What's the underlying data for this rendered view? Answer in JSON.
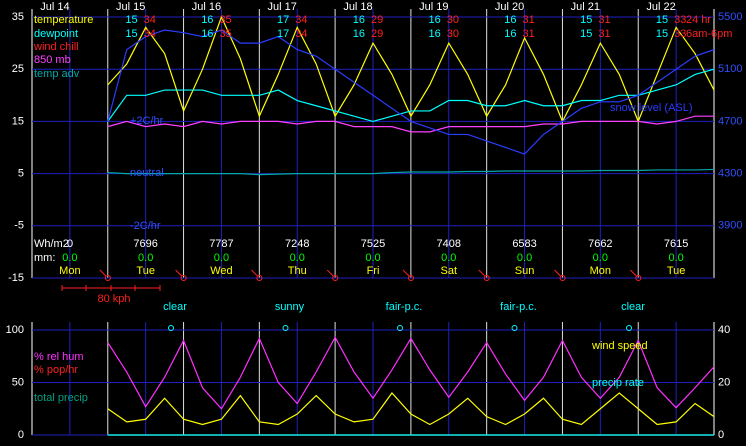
{
  "chart_data": [
    {
      "type": "line",
      "x": [
        0,
        6,
        12,
        18,
        24,
        30,
        36,
        42,
        48,
        54,
        60,
        66,
        72,
        78,
        84,
        90,
        96,
        102,
        108,
        114,
        120,
        126,
        132,
        138,
        144,
        150,
        156,
        162,
        168,
        174,
        180,
        186,
        192,
        198,
        204,
        210,
        216
      ],
      "xlim": [
        0,
        216
      ],
      "xticks": [
        {
          "value": 12,
          "label": "Jul 14"
        },
        {
          "value": 36,
          "label": "Jul 15"
        },
        {
          "value": 60,
          "label": "Jul 16"
        },
        {
          "value": 84,
          "label": "Jul 17"
        },
        {
          "value": 108,
          "label": "Jul 18"
        },
        {
          "value": 132,
          "label": "Jul 19"
        },
        {
          "value": 156,
          "label": "Jul 20"
        },
        {
          "value": 180,
          "label": "Jul 21"
        },
        {
          "value": 204,
          "label": "Jul 22"
        }
      ],
      "ylim": [
        -15,
        35
      ],
      "yticks": [
        -15,
        -5,
        5,
        15,
        25,
        35
      ],
      "y2lim": [
        3500,
        5500
      ],
      "y2ticks": [
        3900,
        4300,
        4700,
        5100,
        5500
      ],
      "grid": true,
      "series": [
        {
          "name": "temperature",
          "color": "#ffff00",
          "values": [
            null,
            null,
            null,
            null,
            22,
            26,
            33,
            28,
            17,
            25,
            35,
            27,
            16,
            24,
            33,
            26,
            16,
            22,
            30,
            24,
            16,
            22,
            30,
            24,
            16,
            22,
            31,
            24,
            15,
            22,
            30,
            24,
            15,
            24,
            33,
            28,
            21
          ]
        },
        {
          "name": "dewpoint",
          "color": "#00ffff",
          "values": [
            null,
            null,
            null,
            null,
            15,
            20,
            20,
            21,
            21,
            21,
            20,
            20,
            20,
            21,
            19,
            18,
            17,
            16,
            15,
            16,
            17,
            17,
            19,
            19,
            18,
            18,
            19,
            18,
            18,
            19,
            19,
            20,
            20,
            21,
            22,
            24,
            25
          ]
        },
        {
          "name": "wind chill",
          "color": "#ff2020",
          "values": [
            null,
            null,
            null,
            null,
            null,
            null,
            null,
            null,
            null,
            null,
            null,
            null,
            null,
            null,
            null,
            null,
            null,
            null,
            null,
            null,
            null,
            null,
            null,
            null,
            null,
            null,
            null,
            null,
            null,
            null,
            null,
            null,
            null,
            null,
            null,
            null,
            null
          ]
        },
        {
          "name": "850 mb",
          "color": "#ff40ff",
          "values": [
            null,
            null,
            null,
            null,
            14,
            15,
            14,
            14.5,
            14,
            15,
            14.5,
            15,
            15,
            15,
            14.5,
            15,
            15,
            14,
            14,
            14,
            13,
            13,
            14,
            14,
            14,
            14,
            14,
            14.5,
            14.5,
            15,
            15,
            15,
            15,
            14.5,
            15,
            16,
            16
          ]
        },
        {
          "name": "temp adv",
          "color": "#00a8a8",
          "values": [
            null,
            null,
            null,
            null,
            5.2,
            5,
            5,
            5,
            5,
            5,
            5,
            5,
            4.8,
            4.9,
            5,
            5,
            5,
            5,
            5,
            5.2,
            5.3,
            5.3,
            5.3,
            5.4,
            5.4,
            5.5,
            5.5,
            5.5,
            5.5,
            5.5,
            5.6,
            5.6,
            5.6,
            5.7,
            5.7,
            5.7,
            5.8
          ]
        },
        {
          "name": "snow level (ASL)",
          "color": "#2a3cff",
          "axis": "y2",
          "values": [
            null,
            null,
            null,
            null,
            4700,
            5250,
            5350,
            5400,
            5380,
            5350,
            5400,
            5300,
            5300,
            5350,
            5250,
            5200,
            5100,
            5000,
            4900,
            4800,
            4700,
            4650,
            4600,
            4600,
            4550,
            4500,
            4450,
            4600,
            4700,
            4800,
            4850,
            4850,
            4900,
            5000,
            5100,
            5200,
            5250
          ]
        }
      ],
      "adv_labels": [
        "+2C/hr",
        "neutral",
        "-2C/hr"
      ],
      "period_labels": [
        "24 hr",
        "6am-6pm"
      ],
      "lows": [
        15,
        16,
        17,
        16,
        16,
        16,
        15,
        15
      ],
      "highs": [
        34,
        35,
        34,
        29,
        30,
        31,
        31,
        33
      ],
      "lows2": [
        15,
        16,
        17,
        16,
        16,
        16,
        15,
        15
      ],
      "highs2": [
        34,
        35,
        34,
        29,
        30,
        31,
        31,
        33
      ],
      "solar_label": "Wh/m2",
      "solar": [
        0,
        7696,
        7787,
        7248,
        7525,
        7408,
        6583,
        7662,
        7615
      ],
      "precip_label": "mm:",
      "precip": [
        "0.0",
        "0.0",
        "0.0",
        "0.0",
        "0.0",
        "0.0",
        "0.0",
        "0.0",
        "0.0"
      ],
      "days": [
        "Mon",
        "Tue",
        "Wed",
        "Thu",
        "Fri",
        "Sat",
        "Sun",
        "Mon",
        "Tue"
      ],
      "wind_scale_label": "80 kph"
    },
    {
      "type": "line",
      "x": [
        0,
        6,
        12,
        18,
        24,
        30,
        36,
        42,
        48,
        54,
        60,
        66,
        72,
        78,
        84,
        90,
        96,
        102,
        108,
        114,
        120,
        126,
        132,
        138,
        144,
        150,
        156,
        162,
        168,
        174,
        180,
        186,
        192,
        198,
        204,
        210,
        216
      ],
      "xlim": [
        0,
        216
      ],
      "ylim": [
        0,
        100
      ],
      "yticks": [
        0,
        50,
        100
      ],
      "y2lim": [
        0,
        40
      ],
      "y2ticks": [
        0,
        20,
        40
      ],
      "grid": true,
      "sky": [
        "clear",
        "sunny",
        "fair-p.c.",
        "fair-p.c.",
        "clear"
      ],
      "series": [
        {
          "name": "% rel hum",
          "color": "#ff30ff",
          "values": [
            null,
            null,
            null,
            null,
            88,
            60,
            27,
            55,
            90,
            45,
            25,
            55,
            92,
            50,
            30,
            60,
            93,
            60,
            35,
            62,
            92,
            62,
            36,
            60,
            88,
            58,
            33,
            55,
            90,
            55,
            35,
            55,
            90,
            45,
            26,
            45,
            65
          ]
        },
        {
          "name": "% pop/hr",
          "color": "#ff2020",
          "values": [
            null,
            null,
            null,
            null,
            0,
            0,
            0,
            0,
            0,
            0,
            0,
            0,
            0,
            0,
            0,
            0,
            0,
            0,
            0,
            0,
            0,
            0,
            0,
            0,
            0,
            0,
            0,
            0,
            0,
            0,
            0,
            0,
            0,
            0,
            0,
            0,
            0
          ]
        },
        {
          "name": "total precip",
          "color": "#00a080",
          "values": [
            null,
            null,
            null,
            null,
            0,
            0,
            0,
            0,
            0,
            0,
            0,
            0,
            0,
            0,
            0,
            0,
            0,
            0,
            0,
            0,
            0,
            0,
            0,
            0,
            0,
            0,
            0,
            0,
            0,
            0,
            0,
            0,
            0,
            0,
            0,
            0,
            0
          ]
        },
        {
          "name": "wind speed",
          "color": "#ffff00",
          "axis": "y2",
          "values": [
            null,
            null,
            null,
            null,
            10,
            5,
            6,
            14,
            6,
            4,
            6,
            15,
            5,
            4,
            8,
            15,
            8,
            5,
            6,
            16,
            8,
            4,
            8,
            14,
            7,
            4,
            8,
            14,
            6,
            4,
            10,
            16,
            10,
            4,
            5,
            12,
            7
          ]
        },
        {
          "name": "precip rate",
          "color": "#00ffff",
          "axis": "y2",
          "values": [
            null,
            null,
            null,
            null,
            0,
            0,
            0,
            0,
            0,
            0,
            0,
            0,
            0,
            0,
            0,
            0,
            0,
            0,
            0,
            0,
            0,
            0,
            0,
            0,
            0,
            0,
            0,
            0,
            0,
            0,
            0,
            0,
            0,
            0,
            0,
            0,
            0
          ]
        }
      ]
    }
  ]
}
